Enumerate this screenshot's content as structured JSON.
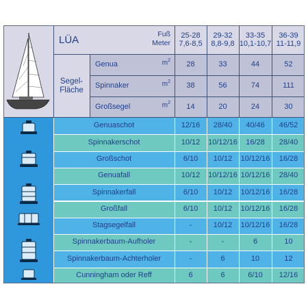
{
  "table": {
    "title": "LÜA",
    "unit_ft": "Fuß",
    "unit_m": "Meter",
    "sizes": [
      {
        "ft": "25-28",
        "m": "7,6-8,5"
      },
      {
        "ft": "29-32",
        "m": "8,8-9,8"
      },
      {
        "ft": "33-35",
        "m": "10,1-10,7"
      },
      {
        "ft": "36-39",
        "m": "11-11,9"
      }
    ],
    "sail_area_label_1": "Segel-",
    "sail_area_label_2": "Fläche",
    "sail_unit": "m",
    "sail_unit_exp": "2",
    "sail_rows": [
      {
        "name": "Genua",
        "values": [
          "28",
          "33",
          "44",
          "52"
        ]
      },
      {
        "name": "Spinnaker",
        "values": [
          "38",
          "56",
          "74",
          "111"
        ]
      },
      {
        "name": "Großsegel",
        "values": [
          "14",
          "20",
          "24",
          "30"
        ]
      }
    ],
    "winch_rows": [
      {
        "name": "Genuaschot",
        "values": [
          "12/16",
          "28/40",
          "40/46",
          "46/52"
        ],
        "color": "#4fb3e8"
      },
      {
        "name": "Spinnakerschot",
        "values": [
          "10/12",
          "10/12/16",
          "16/28",
          "28/40"
        ],
        "color": "#6ec9c0"
      },
      {
        "name": "Großschot",
        "values": [
          "6/10",
          "10/12",
          "10/12/16",
          "16/28"
        ],
        "color": "#4fb3e8"
      },
      {
        "name": "Genuafall",
        "values": [
          "10/12",
          "10/12/16",
          "10/12/16",
          "28/40"
        ],
        "color": "#6ec9c0"
      },
      {
        "name": "Spinnakerfall",
        "values": [
          "6/10",
          "10/12",
          "10/12/16",
          "16/28"
        ],
        "color": "#4fb3e8"
      },
      {
        "name": "Großfall",
        "values": [
          "6/10",
          "10/12",
          "10/12/16",
          "16/28"
        ],
        "color": "#6ec9c0"
      },
      {
        "name": "Stagsegelfall",
        "values": [
          "-",
          "10/12",
          "10/12/16",
          "16/28"
        ],
        "color": "#4fb3e8"
      },
      {
        "name": "Spinnakerbaum-Aufholer",
        "values": [
          "-",
          "-",
          "6",
          "10"
        ],
        "color": "#6ec9c0"
      },
      {
        "name": "Spinnakerbaum-Achterholer",
        "values": [
          "-",
          "6",
          "10",
          "12"
        ],
        "color": "#4fb3e8"
      },
      {
        "name": "Cunningham oder Reff",
        "values": [
          "6",
          "6",
          "6/10",
          "12/16"
        ],
        "color": "#6ec9c0"
      }
    ]
  },
  "icons": {
    "boat": "sailboat-icon",
    "winch": "winch-icon"
  },
  "colors": {
    "header_bg": "#d8d8e6",
    "row_blue": "#4fb3e8",
    "row_teal": "#6ec9c0",
    "text": "#1f3f8a"
  }
}
